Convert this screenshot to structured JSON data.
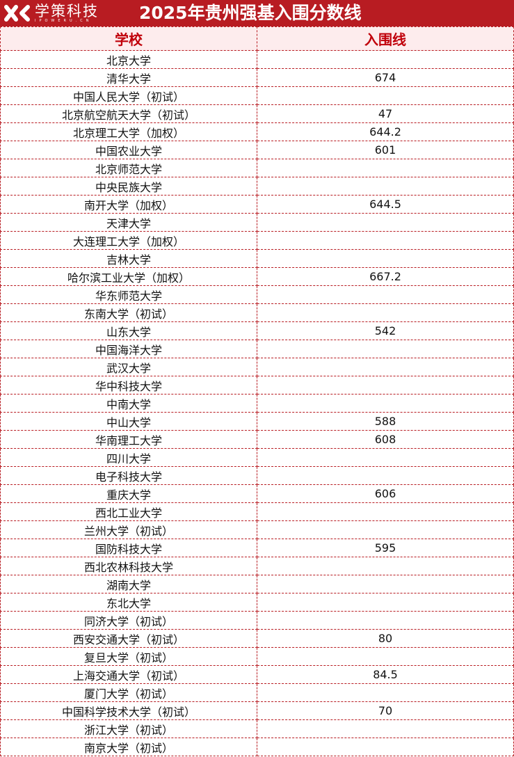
{
  "logo": {
    "name": "学策科技",
    "sub": "IPOWERU.CN"
  },
  "title": "2025年贵州强基入围分数线",
  "colors": {
    "accent": "#b81c22",
    "header_bg": "#fdeced",
    "header_text": "#c0000a"
  },
  "headers": [
    "学校",
    "入围线"
  ],
  "rows": [
    {
      "school": "北京大学",
      "score": ""
    },
    {
      "school": "清华大学",
      "score": "674"
    },
    {
      "school": "中国人民大学（初试）",
      "score": ""
    },
    {
      "school": "北京航空航天大学（初试）",
      "score": "47"
    },
    {
      "school": "北京理工大学（加权）",
      "score": "644.2"
    },
    {
      "school": "中国农业大学",
      "score": "601"
    },
    {
      "school": "北京师范大学",
      "score": ""
    },
    {
      "school": "中央民族大学",
      "score": ""
    },
    {
      "school": "南开大学（加权）",
      "score": "644.5"
    },
    {
      "school": "天津大学",
      "score": ""
    },
    {
      "school": "大连理工大学（加权）",
      "score": ""
    },
    {
      "school": "吉林大学",
      "score": ""
    },
    {
      "school": "哈尔滨工业大学（加权）",
      "score": "667.2"
    },
    {
      "school": "华东师范大学",
      "score": ""
    },
    {
      "school": "东南大学（初试）",
      "score": ""
    },
    {
      "school": "山东大学",
      "score": "542"
    },
    {
      "school": "中国海洋大学",
      "score": ""
    },
    {
      "school": "武汉大学",
      "score": ""
    },
    {
      "school": "华中科技大学",
      "score": ""
    },
    {
      "school": "中南大学",
      "score": ""
    },
    {
      "school": "中山大学",
      "score": "588"
    },
    {
      "school": "华南理工大学",
      "score": "608"
    },
    {
      "school": "四川大学",
      "score": ""
    },
    {
      "school": "电子科技大学",
      "score": ""
    },
    {
      "school": "重庆大学",
      "score": "606"
    },
    {
      "school": "西北工业大学",
      "score": ""
    },
    {
      "school": "兰州大学（初试）",
      "score": ""
    },
    {
      "school": "国防科技大学",
      "score": "595"
    },
    {
      "school": "西北农林科技大学",
      "score": ""
    },
    {
      "school": "湖南大学",
      "score": ""
    },
    {
      "school": "东北大学",
      "score": ""
    },
    {
      "school": "同济大学（初试）",
      "score": ""
    },
    {
      "school": "西安交通大学（初试）",
      "score": "80"
    },
    {
      "school": "复旦大学（初试）",
      "score": ""
    },
    {
      "school": "上海交通大学（初试）",
      "score": "84.5"
    },
    {
      "school": "厦门大学（初试）",
      "score": ""
    },
    {
      "school": "中国科学技术大学（初试）",
      "score": "70"
    },
    {
      "school": "浙江大学（初试）",
      "score": ""
    },
    {
      "school": "南京大学（初试）",
      "score": ""
    }
  ]
}
